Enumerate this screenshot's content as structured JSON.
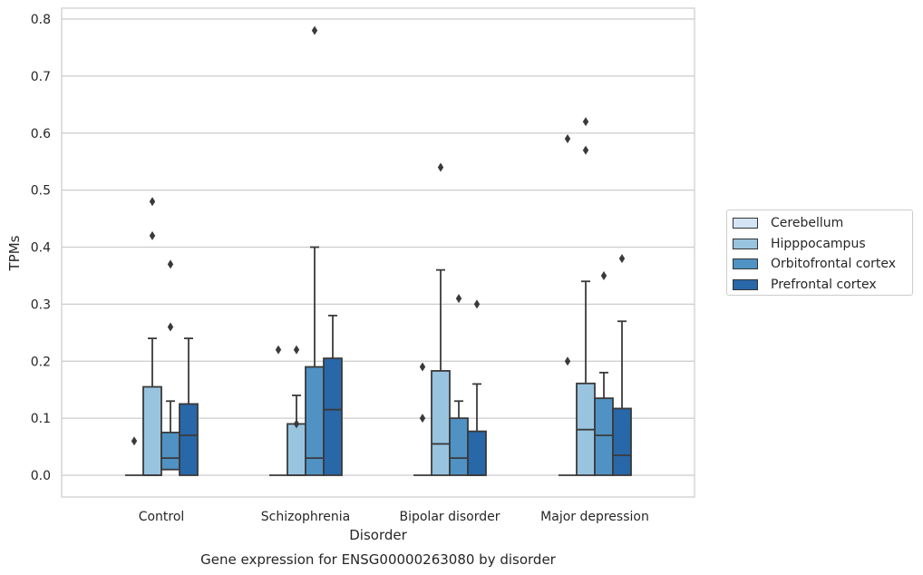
{
  "chart_data": {
    "type": "box",
    "title": "Gene expression for ENSG00000263080 by disorder",
    "xlabel": "Disorder",
    "ylabel": "TPMs",
    "ylim": [
      -0.04,
      0.82
    ],
    "yticks": [
      "0.0",
      "0.1",
      "0.2",
      "0.3",
      "0.4",
      "0.5",
      "0.6",
      "0.7",
      "0.8"
    ],
    "grid": true,
    "legend_position": "right",
    "categories": [
      "Control",
      "Schizophrenia",
      "Bipolar disorder",
      "Major depression"
    ],
    "series": [
      {
        "name": "Cerebellum",
        "color": "#d4e4f4",
        "boxes": [
          {
            "q1": 0,
            "median": 0,
            "q3": 0,
            "whisker_low": 0,
            "whisker_high": 0,
            "outliers": [
              0.06
            ]
          },
          {
            "q1": 0,
            "median": 0,
            "q3": 0,
            "whisker_low": 0,
            "whisker_high": 0,
            "outliers": []
          },
          {
            "q1": 0,
            "median": 0,
            "q3": 0,
            "whisker_low": 0,
            "whisker_high": 0,
            "outliers": []
          },
          {
            "q1": 0,
            "median": 0,
            "q3": 0,
            "whisker_low": 0,
            "whisker_high": 0,
            "outliers": []
          }
        ]
      },
      {
        "name": "Hipppocampus",
        "color": "#99c4e0",
        "boxes": [
          {
            "q1": 0,
            "median": 0,
            "q3": 0.155,
            "whisker_low": 0,
            "whisker_high": 0.24,
            "outliers": [
              0.42,
              0.48
            ]
          },
          {
            "q1": 0,
            "median": 0,
            "q3": 0.09,
            "whisker_low": 0,
            "whisker_high": 0.14,
            "outliers": [
              0.09,
              0.22
            ]
          },
          {
            "q1": 0,
            "median": 0.055,
            "q3": 0.183,
            "whisker_low": 0,
            "whisker_high": 0.36,
            "outliers": [
              0.54
            ]
          },
          {
            "q1": 0,
            "median": 0.08,
            "q3": 0.161,
            "whisker_low": 0,
            "whisker_high": 0.34,
            "outliers": [
              0.57,
              0.62
            ]
          }
        ]
      },
      {
        "name": "Orbitofrontal cortex",
        "color": "#4f92c3",
        "boxes": [
          {
            "q1": 0.01,
            "median": 0.03,
            "q3": 0.075,
            "whisker_low": 0,
            "whisker_high": 0.13,
            "outliers": [
              0.26,
              0.37
            ]
          },
          {
            "q1": 0,
            "median": 0.03,
            "q3": 0.19,
            "whisker_low": 0,
            "whisker_high": 0.4,
            "outliers": [
              0.78
            ]
          },
          {
            "q1": 0,
            "median": 0.03,
            "q3": 0.1,
            "whisker_low": 0,
            "whisker_high": 0.13,
            "outliers": [
              0.31
            ]
          },
          {
            "q1": 0,
            "median": 0.07,
            "q3": 0.135,
            "whisker_low": 0,
            "whisker_high": 0.18,
            "outliers": [
              0.35
            ]
          }
        ]
      },
      {
        "name": "Prefrontal cortex",
        "color": "#2867a8",
        "boxes": [
          {
            "q1": 0,
            "median": 0.07,
            "q3": 0.125,
            "whisker_low": 0,
            "whisker_high": 0.24,
            "outliers": []
          },
          {
            "q1": 0,
            "median": 0.115,
            "q3": 0.205,
            "whisker_low": 0,
            "whisker_high": 0.28,
            "outliers": []
          },
          {
            "q1": 0,
            "median": 0,
            "q3": 0.077,
            "whisker_low": 0,
            "whisker_high": 0.16,
            "outliers": [
              0.3
            ]
          },
          {
            "q1": 0,
            "median": 0.035,
            "q3": 0.117,
            "whisker_low": 0,
            "whisker_high": 0.27,
            "outliers": [
              0.38
            ]
          }
        ]
      }
    ],
    "extra_outliers": [
      {
        "category": 1,
        "series": 0,
        "value": 0.22
      },
      {
        "category": 2,
        "series": 0,
        "value": 0.19
      },
      {
        "category": 2,
        "series": 0,
        "value": 0.1
      },
      {
        "category": 3,
        "series": 0,
        "value": 0.59
      },
      {
        "category": 3,
        "series": 0,
        "value": 0.2
      }
    ]
  }
}
